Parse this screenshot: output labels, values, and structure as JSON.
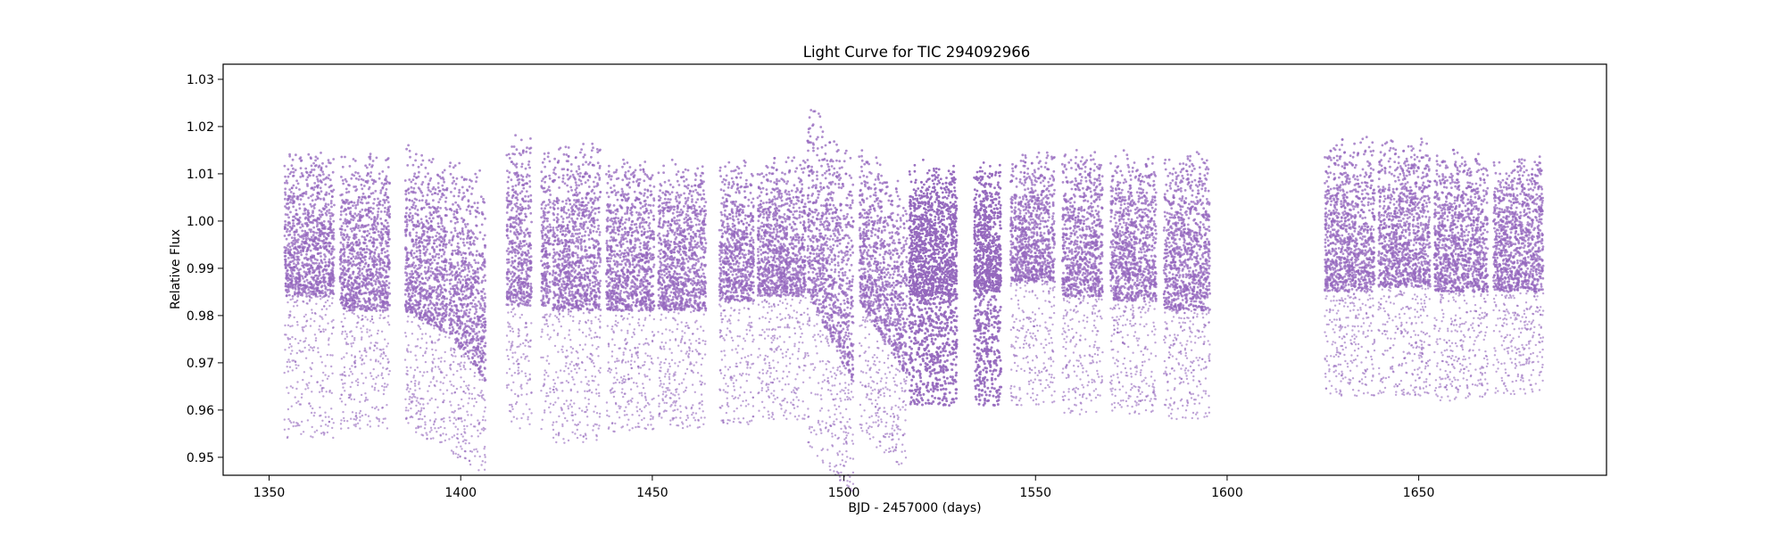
{
  "chart_data": {
    "type": "scatter",
    "title": "Light Curve for TIC 294092966",
    "xlabel": "BJD - 2457000 (days)",
    "ylabel": "Relative Flux",
    "xlim": [
      1338,
      1699
    ],
    "ylim": [
      0.9462,
      1.0332
    ],
    "xticks": [
      1350,
      1400,
      1450,
      1500,
      1550,
      1600,
      1650
    ],
    "yticks": [
      0.95,
      0.96,
      0.97,
      0.98,
      0.99,
      1.0,
      1.01,
      1.02,
      1.03
    ],
    "ytick_labels": [
      "0.95",
      "0.96",
      "0.97",
      "0.98",
      "0.99",
      "1.00",
      "1.01",
      "1.02",
      "1.03"
    ],
    "grid": false,
    "legend": "none",
    "marker_color": "#9467bd",
    "series": [
      {
        "segments": [
          {
            "x": [
              1354.0,
              1367.0
            ],
            "bulk": [
              0.984,
              1.015
            ],
            "low": 0.954
          },
          {
            "x": [
              1368.5,
              1381.5
            ],
            "bulk": [
              0.981,
              1.015
            ],
            "low": 0.956
          },
          {
            "x": [
              1385.5,
              1396.5
            ],
            "bulk": [
              0.981,
              1.017
            ],
            "low": 0.955,
            "trend": -0.005
          },
          {
            "x": [
              1397.0,
              1406.5
            ],
            "bulk": [
              0.976,
              1.016
            ],
            "low": 0.951,
            "trend": -0.01
          },
          {
            "x": [
              1412.0,
              1418.5
            ],
            "bulk": [
              0.982,
              1.019
            ],
            "low": 0.955
          },
          {
            "x": [
              1421.0,
              1423.5
            ],
            "bulk": [
              0.982,
              1.015
            ],
            "low": 0.954
          },
          {
            "x": [
              1424.0,
              1436.5
            ],
            "bulk": [
              0.981,
              1.017
            ],
            "low": 0.953
          },
          {
            "x": [
              1438.0,
              1450.5
            ],
            "bulk": [
              0.981,
              1.014
            ],
            "low": 0.955
          },
          {
            "x": [
              1451.5,
              1464.0
            ],
            "bulk": [
              0.981,
              1.013
            ],
            "low": 0.956
          },
          {
            "x": [
              1467.5,
              1476.5
            ],
            "bulk": [
              0.983,
              1.014
            ],
            "low": 0.957
          },
          {
            "x": [
              1477.5,
              1490.0
            ],
            "bulk": [
              0.984,
              1.014
            ],
            "low": 0.958
          },
          {
            "x": [
              1490.5,
              1502.5
            ],
            "bulk": [
              0.985,
              1.027
            ],
            "low": 0.952,
            "trend": -0.02
          },
          {
            "x": [
              1504.0,
              1516.5
            ],
            "bulk": [
              0.983,
              1.018
            ],
            "low": 0.955,
            "trend": -0.016
          },
          {
            "x": [
              1517.0,
              1529.5
            ],
            "bulk": [
              0.984,
              1.013
            ],
            "low": 0.961,
            "dense": true
          },
          {
            "x": [
              1534.0,
              1541.0
            ],
            "bulk": [
              0.985,
              1.013
            ],
            "low": 0.961,
            "dense": true
          },
          {
            "x": [
              1543.5,
              1555.0
            ],
            "bulk": [
              0.987,
              1.015
            ],
            "low": 0.961
          },
          {
            "x": [
              1557.0,
              1567.5
            ],
            "bulk": [
              0.984,
              1.016
            ],
            "low": 0.959
          },
          {
            "x": [
              1569.5,
              1581.5
            ],
            "bulk": [
              0.983,
              1.015
            ],
            "low": 0.959
          },
          {
            "x": [
              1583.5,
              1595.5
            ],
            "bulk": [
              0.981,
              1.016
            ],
            "low": 0.958
          },
          {
            "x": [
              1625.5,
              1638.5
            ],
            "bulk": [
              0.985,
              1.018
            ],
            "low": 0.963
          },
          {
            "x": [
              1639.5,
              1653.0
            ],
            "bulk": [
              0.986,
              1.018
            ],
            "low": 0.963
          },
          {
            "x": [
              1654.0,
              1668.0
            ],
            "bulk": [
              0.985,
              1.016
            ],
            "low": 0.962
          },
          {
            "x": [
              1669.5,
              1682.5
            ],
            "bulk": [
              0.985,
              1.015
            ],
            "low": 0.963
          }
        ]
      }
    ]
  }
}
